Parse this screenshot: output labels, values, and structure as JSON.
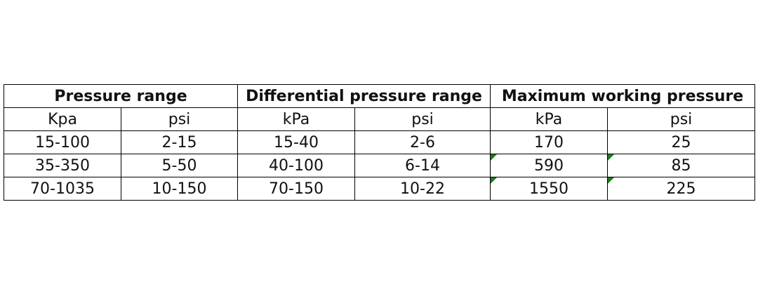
{
  "header": {
    "groups": [
      "Pressure range",
      "Differential pressure range",
      "Maximum working pressure"
    ]
  },
  "table": {
    "units": [
      "Kpa",
      "psi",
      "kPa",
      "psi",
      "kPa",
      "psi"
    ],
    "rows": [
      [
        "15-100",
        "2-15",
        "15-40",
        "2-6",
        "170",
        "25"
      ],
      [
        "35-350",
        "5-50",
        "40-100",
        "6-14",
        "590",
        "85"
      ],
      [
        "70-1035",
        "10-150",
        "70-150",
        "10-22",
        "1550",
        "225"
      ]
    ]
  }
}
